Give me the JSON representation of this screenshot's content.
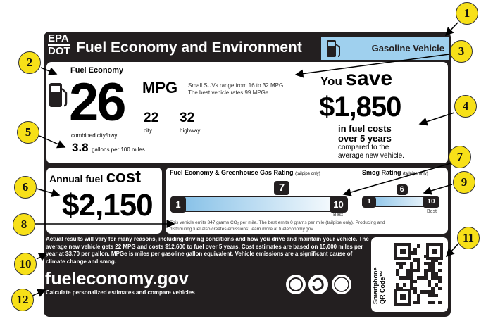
{
  "header": {
    "epa": "EPA",
    "dot": "DOT",
    "title": "Fuel Economy and Environment",
    "vehicle_type": "Gasoline Vehicle"
  },
  "fuel_economy": {
    "heading": "Fuel Economy",
    "combined": "26",
    "unit": "MPG",
    "combined_label": "combined city/hwy",
    "city": "22",
    "city_label": "city",
    "highway": "32",
    "highway_label": "highway",
    "range_text_1": "Small SUVs range from 16 to 32 MPG.",
    "range_text_2": "The best vehicle rates 99 MPGe.",
    "gallons": "3.8",
    "gallons_label": "gallons per 100 miles"
  },
  "savings": {
    "you": "You",
    "save": "save",
    "amount": "$1,850",
    "line1": "in fuel costs",
    "line2": "over 5 years",
    "line3": "compared to the",
    "line4": "average new vehicle."
  },
  "annual_cost": {
    "label": "Annual fuel",
    "cost_word": "cost",
    "amount": "$2,150"
  },
  "ghg_rating": {
    "title": "Fuel Economy & Greenhouse Gas Rating",
    "qualifier": "(tailpipe only)",
    "min": "1",
    "max": "10",
    "value": "7",
    "rating": 7,
    "best": "Best",
    "note_1": "This vehicle emits 347 grams CO₂ per mile. The best emits 0 grams per mile (tailpipe only). Producing and",
    "note_2": "distributing fuel also creates emissions; learn more at fueleconomy.gov."
  },
  "smog_rating": {
    "title": "Smog Rating",
    "qualifier": "(tailpipe only)",
    "min": "1",
    "max": "10",
    "value": "6",
    "rating": 6,
    "best": "Best"
  },
  "disclaimer": "Actual results will vary for many reasons, including driving conditions and how you drive and maintain your vehicle. The average new vehicle gets 22 MPG and costs $12,600 to fuel over 5 years. Cost estimates are based on 15,000 miles per year at $3.70 per gallon. MPGe is miles per gasoline gallon equivalent. Vehicle emissions are a significant cause of climate change and smog.",
  "footer": {
    "site": "fueleconomy.gov",
    "tagline": "Calculate personalized estimates and compare vehicles",
    "qr_label_1": "Smartphone",
    "qr_label_2": "QR Code™"
  },
  "callouts": [
    "1",
    "2",
    "3",
    "4",
    "5",
    "6",
    "7",
    "8",
    "9",
    "10",
    "11",
    "12"
  ],
  "colors": {
    "label_black": "#231f20",
    "accent_blue": "#9fd0ee",
    "callout_yellow": "#f7e018"
  }
}
